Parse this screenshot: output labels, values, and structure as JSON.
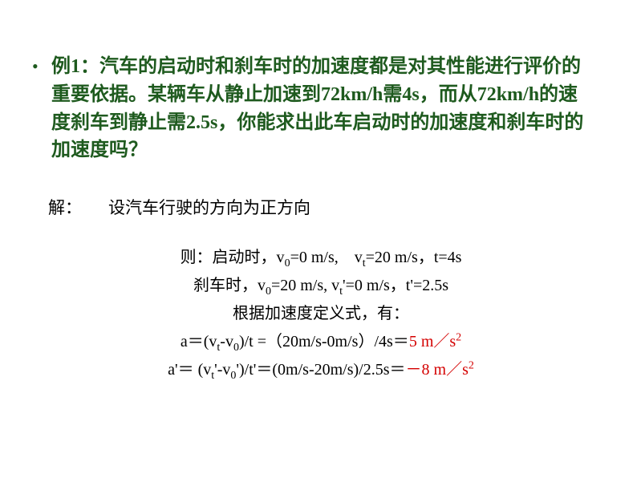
{
  "colors": {
    "background": "#ffffff",
    "problem_text": "#1e5a1e",
    "body_text": "#000000",
    "emphasis": "#d40000"
  },
  "fonts": {
    "problem_size_pt": 18,
    "body_size_pt": 16,
    "family": "SimSun"
  },
  "bullet": "•",
  "problem": {
    "label": "例1：",
    "text_part1": "汽车的启动时和刹车时的加速度都是对其性能进行评价的重要依据。某辆车从静止加速到72km/h需4s，而从72km/h的速度刹车到静止需2.5s，你能求出此车启动时的加速度和刹车时的加速度吗？"
  },
  "solution": {
    "label": "解：",
    "direction": "设汽车行驶的方向为正方向",
    "line1_pre": "则：启动时，v",
    "line1_sub0": "0",
    "line1_mid1": "=0 m/s,　v",
    "line1_subt": "t",
    "line1_mid2": "=20 m/s，t=4s",
    "line2_pre": "刹车时，v",
    "line2_sub0": "0",
    "line2_mid1": "=20 m/s,  v",
    "line2_subt": "t",
    "line2_mid2": "'=0 m/s，t'=2.5s",
    "line3": "根据加速度定义式，有：",
    "line4_pre": "a＝(v",
    "line4_subt": "t",
    "line4_mid1": "-v",
    "line4_sub0": "0",
    "line4_mid2": ")/t =（20m/s-0m/s）/4s＝",
    "line4_result": "5 m／s",
    "line4_sup": "2",
    "line5_pre": "a'＝ (v",
    "line5_subt": "t",
    "line5_mid1": "'-v",
    "line5_sub0": "0",
    "line5_mid2": "')/t'＝(0m/s-20m/s)/2.5s＝",
    "line5_neg": "－",
    "line5_result": "8 m／s",
    "line5_sup": "2"
  }
}
